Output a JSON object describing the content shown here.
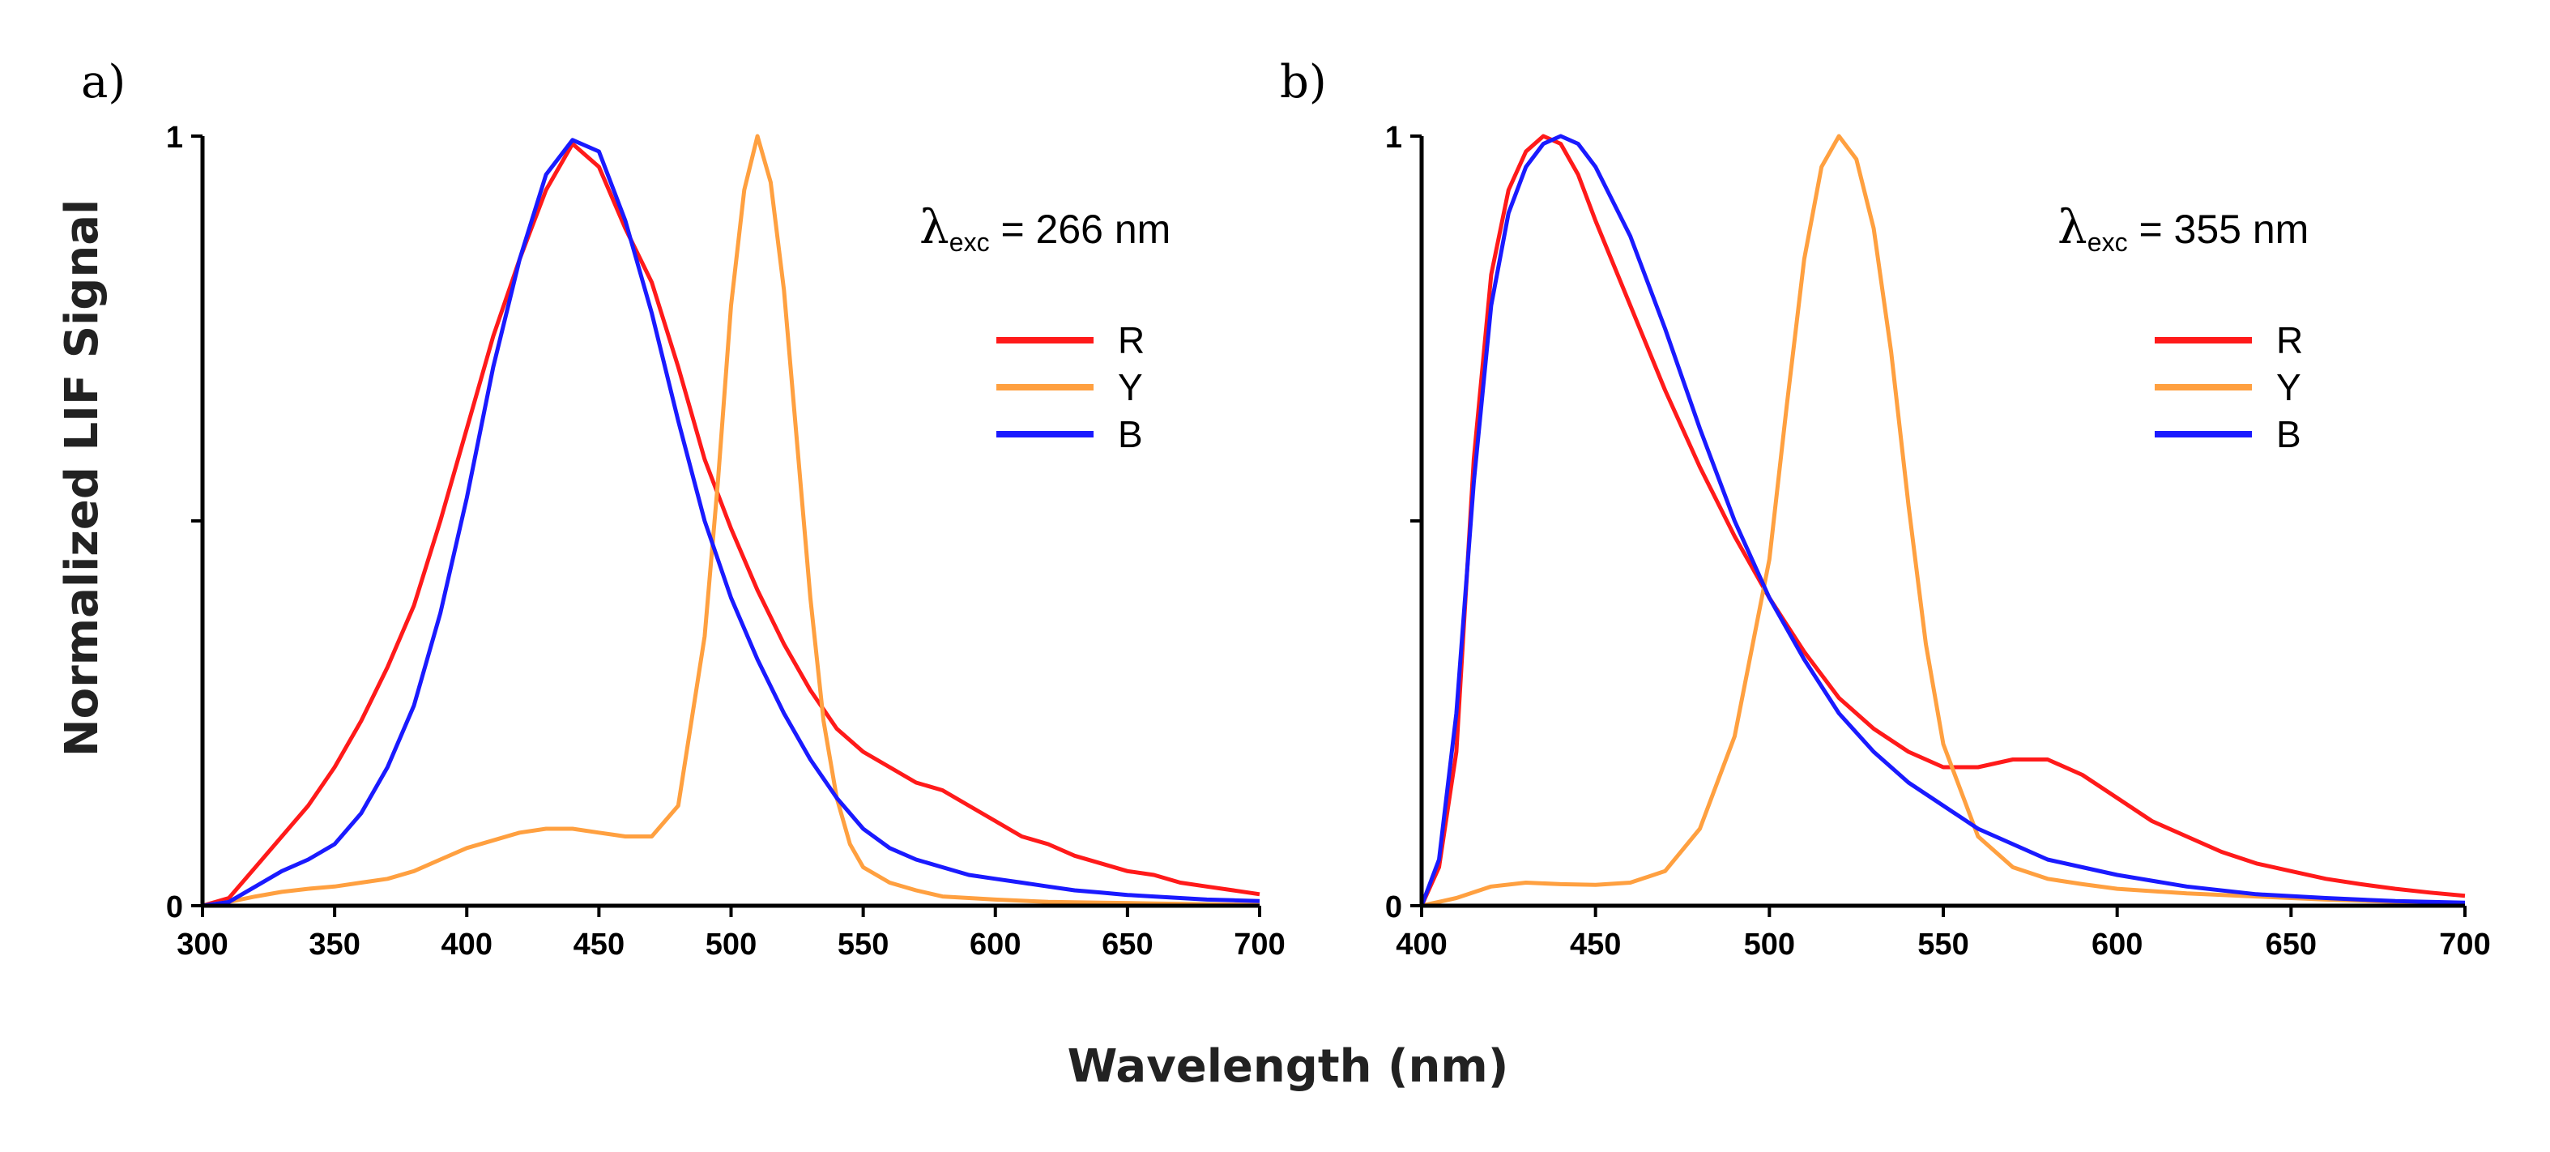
{
  "figure": {
    "xlabel": "Wavelength (nm)",
    "ylabel": "Normalized LIF Signal"
  },
  "chart_data": [
    {
      "type": "line",
      "panel_label": "a)",
      "annotation": {
        "symbol": "λ",
        "subscript": "exc",
        "text": " = 266 nm"
      },
      "xlim": [
        300,
        700
      ],
      "ylim": [
        0,
        1
      ],
      "xticks": [
        300,
        350,
        400,
        450,
        500,
        550,
        600,
        650,
        700
      ],
      "yticks": [
        0,
        0.5,
        1
      ],
      "ytick_labels": [
        "0",
        "",
        "1"
      ],
      "legend_position": "upper-right",
      "series": [
        {
          "name": "R",
          "color": "#ff1a1a",
          "x": [
            300,
            310,
            320,
            330,
            340,
            350,
            360,
            370,
            380,
            390,
            400,
            410,
            420,
            430,
            440,
            450,
            460,
            470,
            480,
            490,
            500,
            510,
            520,
            530,
            540,
            550,
            560,
            570,
            580,
            590,
            600,
            610,
            620,
            630,
            640,
            650,
            660,
            670,
            680,
            690,
            700
          ],
          "y": [
            0.0,
            0.01,
            0.05,
            0.09,
            0.13,
            0.18,
            0.24,
            0.31,
            0.39,
            0.5,
            0.62,
            0.74,
            0.84,
            0.93,
            0.99,
            0.96,
            0.88,
            0.81,
            0.7,
            0.58,
            0.49,
            0.41,
            0.34,
            0.28,
            0.23,
            0.2,
            0.18,
            0.16,
            0.15,
            0.13,
            0.11,
            0.09,
            0.08,
            0.065,
            0.055,
            0.045,
            0.04,
            0.03,
            0.025,
            0.02,
            0.015
          ]
        },
        {
          "name": "Y",
          "color": "#ffa040",
          "x": [
            300,
            310,
            320,
            330,
            340,
            350,
            360,
            370,
            380,
            390,
            400,
            410,
            420,
            430,
            440,
            450,
            460,
            470,
            480,
            490,
            495,
            500,
            505,
            510,
            515,
            520,
            525,
            530,
            535,
            540,
            545,
            550,
            560,
            570,
            580,
            600,
            620,
            640,
            660,
            680,
            700
          ],
          "y": [
            0.0,
            0.005,
            0.012,
            0.018,
            0.022,
            0.025,
            0.03,
            0.035,
            0.045,
            0.06,
            0.075,
            0.085,
            0.095,
            0.1,
            0.1,
            0.095,
            0.09,
            0.09,
            0.13,
            0.35,
            0.55,
            0.78,
            0.93,
            1.0,
            0.94,
            0.8,
            0.6,
            0.4,
            0.24,
            0.14,
            0.08,
            0.05,
            0.03,
            0.02,
            0.012,
            0.008,
            0.005,
            0.004,
            0.003,
            0.002,
            0.001
          ]
        },
        {
          "name": "B",
          "color": "#1a1aff",
          "x": [
            300,
            310,
            320,
            330,
            340,
            350,
            360,
            370,
            380,
            390,
            400,
            410,
            420,
            430,
            440,
            450,
            460,
            470,
            480,
            490,
            500,
            510,
            520,
            530,
            540,
            550,
            560,
            570,
            580,
            590,
            600,
            610,
            620,
            630,
            640,
            650,
            660,
            670,
            680,
            690,
            700
          ],
          "y": [
            0.0,
            0.005,
            0.025,
            0.045,
            0.06,
            0.08,
            0.12,
            0.18,
            0.26,
            0.38,
            0.53,
            0.7,
            0.84,
            0.95,
            0.995,
            0.98,
            0.89,
            0.77,
            0.63,
            0.5,
            0.4,
            0.32,
            0.25,
            0.19,
            0.14,
            0.1,
            0.075,
            0.06,
            0.05,
            0.04,
            0.035,
            0.03,
            0.025,
            0.02,
            0.017,
            0.014,
            0.012,
            0.01,
            0.008,
            0.007,
            0.006
          ]
        }
      ]
    },
    {
      "type": "line",
      "panel_label": "b)",
      "annotation": {
        "symbol": "λ",
        "subscript": "exc",
        "text": " = 355 nm"
      },
      "xlim": [
        400,
        700
      ],
      "ylim": [
        0,
        1
      ],
      "xticks": [
        400,
        450,
        500,
        550,
        600,
        650,
        700
      ],
      "yticks": [
        0,
        0.5,
        1
      ],
      "ytick_labels": [
        "0",
        "",
        "1"
      ],
      "legend_position": "upper-right",
      "series": [
        {
          "name": "R",
          "color": "#ff1a1a",
          "x": [
            400,
            405,
            410,
            415,
            420,
            425,
            430,
            435,
            440,
            445,
            450,
            460,
            470,
            480,
            490,
            500,
            510,
            520,
            530,
            540,
            550,
            560,
            570,
            580,
            590,
            600,
            610,
            620,
            630,
            640,
            650,
            660,
            670,
            680,
            690,
            700
          ],
          "y": [
            0.0,
            0.05,
            0.2,
            0.58,
            0.82,
            0.93,
            0.98,
            1.0,
            0.99,
            0.95,
            0.89,
            0.78,
            0.67,
            0.57,
            0.48,
            0.4,
            0.33,
            0.27,
            0.23,
            0.2,
            0.18,
            0.18,
            0.19,
            0.19,
            0.17,
            0.14,
            0.11,
            0.09,
            0.07,
            0.055,
            0.045,
            0.035,
            0.028,
            0.022,
            0.017,
            0.013
          ]
        },
        {
          "name": "Y",
          "color": "#ffa040",
          "x": [
            400,
            410,
            420,
            430,
            440,
            450,
            460,
            470,
            480,
            490,
            500,
            505,
            510,
            515,
            520,
            525,
            530,
            535,
            540,
            545,
            550,
            560,
            570,
            580,
            590,
            600,
            620,
            640,
            660,
            680,
            700
          ],
          "y": [
            0.0,
            0.01,
            0.025,
            0.03,
            0.028,
            0.027,
            0.03,
            0.045,
            0.1,
            0.22,
            0.45,
            0.65,
            0.84,
            0.96,
            1.0,
            0.97,
            0.88,
            0.72,
            0.52,
            0.34,
            0.21,
            0.09,
            0.05,
            0.035,
            0.028,
            0.022,
            0.016,
            0.012,
            0.008,
            0.005,
            0.003
          ]
        },
        {
          "name": "B",
          "color": "#1a1aff",
          "x": [
            400,
            405,
            410,
            415,
            420,
            425,
            430,
            435,
            440,
            445,
            450,
            460,
            470,
            480,
            490,
            500,
            510,
            520,
            530,
            540,
            550,
            560,
            570,
            580,
            590,
            600,
            620,
            640,
            660,
            680,
            700
          ],
          "y": [
            0.0,
            0.06,
            0.25,
            0.55,
            0.78,
            0.9,
            0.96,
            0.99,
            1.0,
            0.99,
            0.96,
            0.87,
            0.75,
            0.62,
            0.5,
            0.4,
            0.32,
            0.25,
            0.2,
            0.16,
            0.13,
            0.1,
            0.08,
            0.06,
            0.05,
            0.04,
            0.025,
            0.015,
            0.01,
            0.006,
            0.004
          ]
        }
      ]
    }
  ]
}
